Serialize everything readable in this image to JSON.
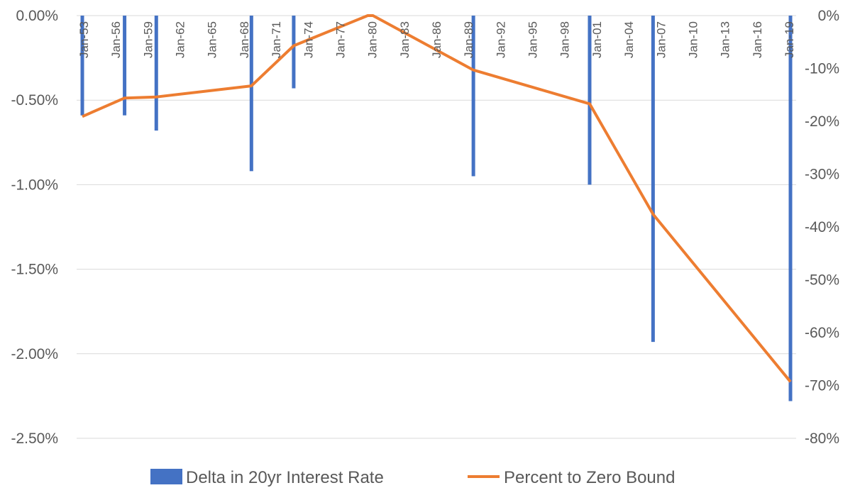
{
  "chart_data": {
    "type": "bar+line",
    "x_categories": [
      "Jan-53",
      "Jan-56",
      "Jan-59",
      "Jan-62",
      "Jan-65",
      "Jan-68",
      "Jan-71",
      "Jan-74",
      "Jan-77",
      "Jan-80",
      "Jan-83",
      "Jan-86",
      "Jan-89",
      "Jan-92",
      "Jan-95",
      "Jan-98",
      "Jan-01",
      "Jan-04",
      "Jan-07",
      "Jan-10",
      "Jan-13",
      "Jan-16",
      "Jan-19"
    ],
    "x_range": [
      1953.0,
      2020.0
    ],
    "left_axis": {
      "ticks": [
        "0.00%",
        "-0.50%",
        "-1.00%",
        "-1.50%",
        "-2.00%",
        "-2.50%"
      ],
      "ylim": [
        -2.5,
        0.0
      ]
    },
    "right_axis": {
      "ticks": [
        "0%",
        "-10%",
        "-20%",
        "-30%",
        "-40%",
        "-50%",
        "-60%",
        "-70%",
        "-80%"
      ],
      "ylim": [
        -80,
        0
      ]
    },
    "series": [
      {
        "name": "Delta in 20yr Interest Rate",
        "kind": "bar",
        "axis": "left",
        "color": "#4472C4",
        "points": [
          {
            "x": 1953.0,
            "y": -0.59
          },
          {
            "x": 1957.0,
            "y": -0.59
          },
          {
            "x": 1960.0,
            "y": -0.68
          },
          {
            "x": 1969.0,
            "y": -0.92
          },
          {
            "x": 1973.0,
            "y": -0.43
          },
          {
            "x": 1990.0,
            "y": -0.95
          },
          {
            "x": 2001.0,
            "y": -1.0
          },
          {
            "x": 2007.0,
            "y": -1.93
          },
          {
            "x": 2020.0,
            "y": -2.28
          }
        ]
      },
      {
        "name": "Percent to Zero Bound",
        "kind": "line",
        "axis": "right",
        "color": "#ED7D31",
        "points": [
          {
            "x": 1953.0,
            "y": -19.1
          },
          {
            "x": 1957.0,
            "y": -15.6
          },
          {
            "x": 1960.0,
            "y": -15.4
          },
          {
            "x": 1969.0,
            "y": -13.3
          },
          {
            "x": 1973.0,
            "y": -5.7
          },
          {
            "x": 1980.0,
            "y": 0
          },
          {
            "x": 1980.5,
            "y": 0
          },
          {
            "x": 1990.0,
            "y": -10.3
          },
          {
            "x": 2001.0,
            "y": -16.7
          },
          {
            "x": 2007.0,
            "y": -37.6
          },
          {
            "x": 2020.0,
            "y": -69.3
          }
        ]
      }
    ],
    "gridlines": "horizontal",
    "legend_position": "bottom",
    "grid_color": "#D9D9D9"
  }
}
